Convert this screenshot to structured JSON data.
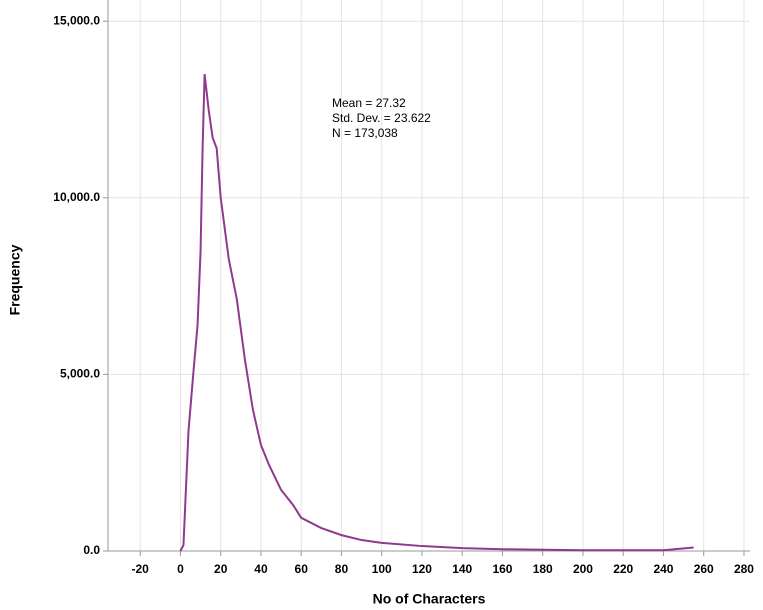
{
  "chart_data": {
    "type": "line",
    "x_label": "No of Characters",
    "y_label": "Frequency",
    "annotations": [
      "Mean = 27.32",
      "Std. Dev. = 23.622",
      "N = 173,038"
    ],
    "xlim": [
      -36,
      283
    ],
    "ylim": [
      0,
      15600
    ],
    "xticks": [
      -20,
      0,
      20,
      40,
      60,
      80,
      100,
      120,
      140,
      160,
      180,
      200,
      220,
      240,
      260,
      280
    ],
    "yticks": [
      {
        "value": 0,
        "label": "0.0"
      },
      {
        "value": 5000,
        "label": "5,000.0"
      },
      {
        "value": 10000,
        "label": "10,000.0"
      },
      {
        "value": 15000,
        "label": "15,000.0"
      }
    ],
    "grid": true,
    "series": [
      {
        "color": "#8e3a8e",
        "x": [
          0,
          1.5,
          4,
          6.5,
          8.5,
          10,
          11,
          12,
          14,
          16,
          18,
          20,
          24,
          28,
          32,
          36,
          40,
          44,
          50,
          56,
          60,
          70,
          80,
          90,
          100,
          120,
          140,
          160,
          200,
          240,
          255
        ],
        "values": [
          0,
          170,
          3400,
          5100,
          6400,
          8500,
          11400,
          13500,
          12500,
          11700,
          11400,
          10000,
          8270,
          7130,
          5430,
          4000,
          3000,
          2440,
          1730,
          1300,
          940,
          650,
          450,
          310,
          230,
          140,
          80,
          50,
          20,
          20,
          100
        ]
      }
    ]
  }
}
